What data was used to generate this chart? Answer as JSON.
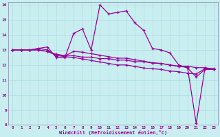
{
  "xlabel": "Windchill (Refroidissement éolien,°C)",
  "background_color": "#c8eef0",
  "line_color": "#990099",
  "grid_color": "#b0dde0",
  "xlim": [
    -0.5,
    23.5
  ],
  "ylim": [
    8,
    16.2
  ],
  "yticks": [
    8,
    9,
    10,
    11,
    12,
    13,
    14,
    15,
    16
  ],
  "xticks": [
    0,
    1,
    2,
    3,
    4,
    5,
    6,
    7,
    8,
    9,
    10,
    11,
    12,
    13,
    14,
    15,
    16,
    17,
    18,
    19,
    20,
    21,
    22,
    23
  ],
  "series": [
    [
      13.0,
      13.0,
      13.0,
      13.1,
      13.2,
      12.5,
      12.5,
      14.1,
      14.4,
      13.0,
      16.0,
      15.4,
      15.5,
      15.6,
      14.8,
      14.3,
      13.1,
      13.0,
      12.8,
      12.0,
      11.8,
      11.2,
      11.7,
      11.7
    ],
    [
      13.0,
      13.0,
      13.0,
      13.1,
      13.0,
      12.6,
      12.6,
      12.9,
      12.85,
      12.75,
      12.65,
      12.55,
      12.45,
      12.45,
      12.35,
      12.25,
      12.15,
      12.1,
      12.0,
      11.9,
      11.85,
      8.1,
      11.8,
      11.75
    ],
    [
      13.0,
      13.0,
      13.0,
      13.0,
      12.9,
      12.65,
      12.55,
      12.5,
      12.4,
      12.3,
      12.2,
      12.1,
      12.0,
      12.0,
      11.9,
      11.8,
      11.75,
      11.7,
      11.6,
      11.55,
      11.45,
      11.4,
      11.75,
      11.7
    ],
    [
      13.0,
      13.0,
      13.0,
      13.0,
      12.9,
      12.72,
      12.62,
      12.62,
      12.52,
      12.52,
      12.42,
      12.42,
      12.32,
      12.32,
      12.22,
      12.22,
      12.12,
      12.1,
      12.0,
      11.92,
      11.92,
      11.82,
      11.82,
      11.72
    ]
  ]
}
